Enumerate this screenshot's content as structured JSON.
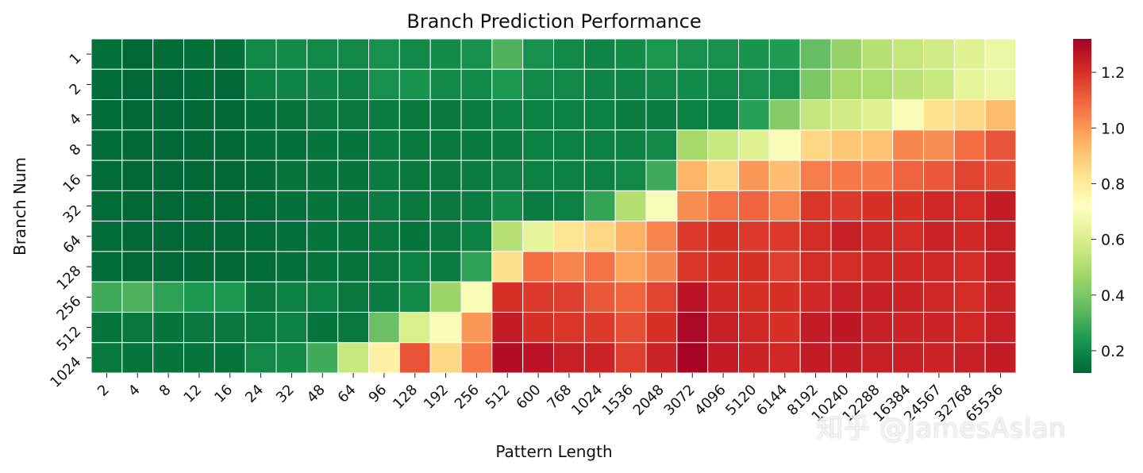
{
  "chart_data": {
    "type": "heatmap",
    "title": "Branch Prediction Performance",
    "xlabel": "Pattern Length",
    "ylabel": "Branch Num",
    "x_categories": [
      "2",
      "4",
      "8",
      "12",
      "16",
      "24",
      "32",
      "48",
      "64",
      "96",
      "128",
      "192",
      "256",
      "512",
      "600",
      "768",
      "1024",
      "1536",
      "2048",
      "3072",
      "4096",
      "5120",
      "6144",
      "8192",
      "10240",
      "12288",
      "16384",
      "24567",
      "32768",
      "65536"
    ],
    "y_categories": [
      "1",
      "2",
      "4",
      "8",
      "16",
      "32",
      "64",
      "128",
      "256",
      "512",
      "1024"
    ],
    "values": [
      [
        0.14,
        0.12,
        0.13,
        0.14,
        0.14,
        0.2,
        0.21,
        0.2,
        0.2,
        0.22,
        0.2,
        0.21,
        0.22,
        0.32,
        0.22,
        0.2,
        0.19,
        0.21,
        0.24,
        0.22,
        0.22,
        0.23,
        0.25,
        0.36,
        0.45,
        0.52,
        0.55,
        0.58,
        0.62,
        0.66
      ],
      [
        0.13,
        0.12,
        0.12,
        0.13,
        0.12,
        0.18,
        0.19,
        0.19,
        0.18,
        0.22,
        0.23,
        0.2,
        0.2,
        0.24,
        0.2,
        0.2,
        0.19,
        0.19,
        0.2,
        0.21,
        0.2,
        0.22,
        0.22,
        0.4,
        0.48,
        0.5,
        0.53,
        0.56,
        0.64,
        0.66
      ],
      [
        0.13,
        0.12,
        0.12,
        0.12,
        0.12,
        0.14,
        0.15,
        0.16,
        0.16,
        0.17,
        0.16,
        0.16,
        0.17,
        0.18,
        0.18,
        0.18,
        0.18,
        0.17,
        0.17,
        0.18,
        0.18,
        0.26,
        0.42,
        0.55,
        0.58,
        0.62,
        0.7,
        0.83,
        0.86,
        0.93
      ],
      [
        0.13,
        0.12,
        0.12,
        0.12,
        0.12,
        0.14,
        0.14,
        0.15,
        0.15,
        0.17,
        0.16,
        0.16,
        0.16,
        0.17,
        0.18,
        0.18,
        0.18,
        0.18,
        0.2,
        0.48,
        0.56,
        0.62,
        0.7,
        0.86,
        0.9,
        0.91,
        1.03,
        1.02,
        1.08,
        1.13
      ],
      [
        0.13,
        0.12,
        0.12,
        0.12,
        0.12,
        0.13,
        0.15,
        0.15,
        0.15,
        0.17,
        0.16,
        0.16,
        0.17,
        0.18,
        0.18,
        0.18,
        0.18,
        0.2,
        0.3,
        0.94,
        0.86,
        1.0,
        0.92,
        1.05,
        1.06,
        1.06,
        1.1,
        1.12,
        1.16,
        1.15
      ],
      [
        0.13,
        0.12,
        0.12,
        0.12,
        0.12,
        0.13,
        0.14,
        0.15,
        0.15,
        0.17,
        0.16,
        0.16,
        0.17,
        0.21,
        0.17,
        0.18,
        0.28,
        0.51,
        0.7,
        1.02,
        1.07,
        1.1,
        1.04,
        1.19,
        1.18,
        1.2,
        1.2,
        1.22,
        1.21,
        1.25
      ],
      [
        0.13,
        0.12,
        0.12,
        0.12,
        0.12,
        0.13,
        0.14,
        0.15,
        0.15,
        0.16,
        0.15,
        0.16,
        0.18,
        0.52,
        0.64,
        0.82,
        0.86,
        0.95,
        1.04,
        1.18,
        1.2,
        1.18,
        1.18,
        1.21,
        1.24,
        1.22,
        1.21,
        1.23,
        1.22,
        1.24
      ],
      [
        0.13,
        0.12,
        0.12,
        0.12,
        0.12,
        0.13,
        0.14,
        0.15,
        0.15,
        0.16,
        0.18,
        0.17,
        0.27,
        0.84,
        1.08,
        1.04,
        1.07,
        0.98,
        1.03,
        1.19,
        1.2,
        1.2,
        1.17,
        1.21,
        1.21,
        1.22,
        1.22,
        1.22,
        1.21,
        1.24
      ],
      [
        0.3,
        0.32,
        0.27,
        0.24,
        0.24,
        0.16,
        0.18,
        0.18,
        0.16,
        0.17,
        0.2,
        0.46,
        0.7,
        1.2,
        1.18,
        1.17,
        1.12,
        1.1,
        1.16,
        1.27,
        1.22,
        1.2,
        1.2,
        1.22,
        1.24,
        1.24,
        1.23,
        1.22,
        1.21,
        1.23
      ],
      [
        0.15,
        0.16,
        0.15,
        0.16,
        0.16,
        0.17,
        0.18,
        0.15,
        0.16,
        0.37,
        0.6,
        0.7,
        1.0,
        1.25,
        1.2,
        1.19,
        1.18,
        1.14,
        1.2,
        1.3,
        1.24,
        1.22,
        1.2,
        1.25,
        1.26,
        1.24,
        1.23,
        1.23,
        1.22,
        1.24
      ],
      [
        0.16,
        0.15,
        0.15,
        0.15,
        0.15,
        0.2,
        0.21,
        0.3,
        0.56,
        0.78,
        1.13,
        0.86,
        1.06,
        1.29,
        1.27,
        1.24,
        1.23,
        1.17,
        1.23,
        1.31,
        1.25,
        1.23,
        1.22,
        1.25,
        1.25,
        1.24,
        1.24,
        1.23,
        1.24,
        1.25
      ]
    ],
    "vmin": 0.12,
    "vmax": 1.32,
    "colorbar_ticks": [
      "0.2",
      "0.4",
      "0.6",
      "0.8",
      "1.0",
      "1.2"
    ],
    "colormap": "RdYlGn_r",
    "grid": true
  },
  "watermark": "知乎 @JamesAslan"
}
